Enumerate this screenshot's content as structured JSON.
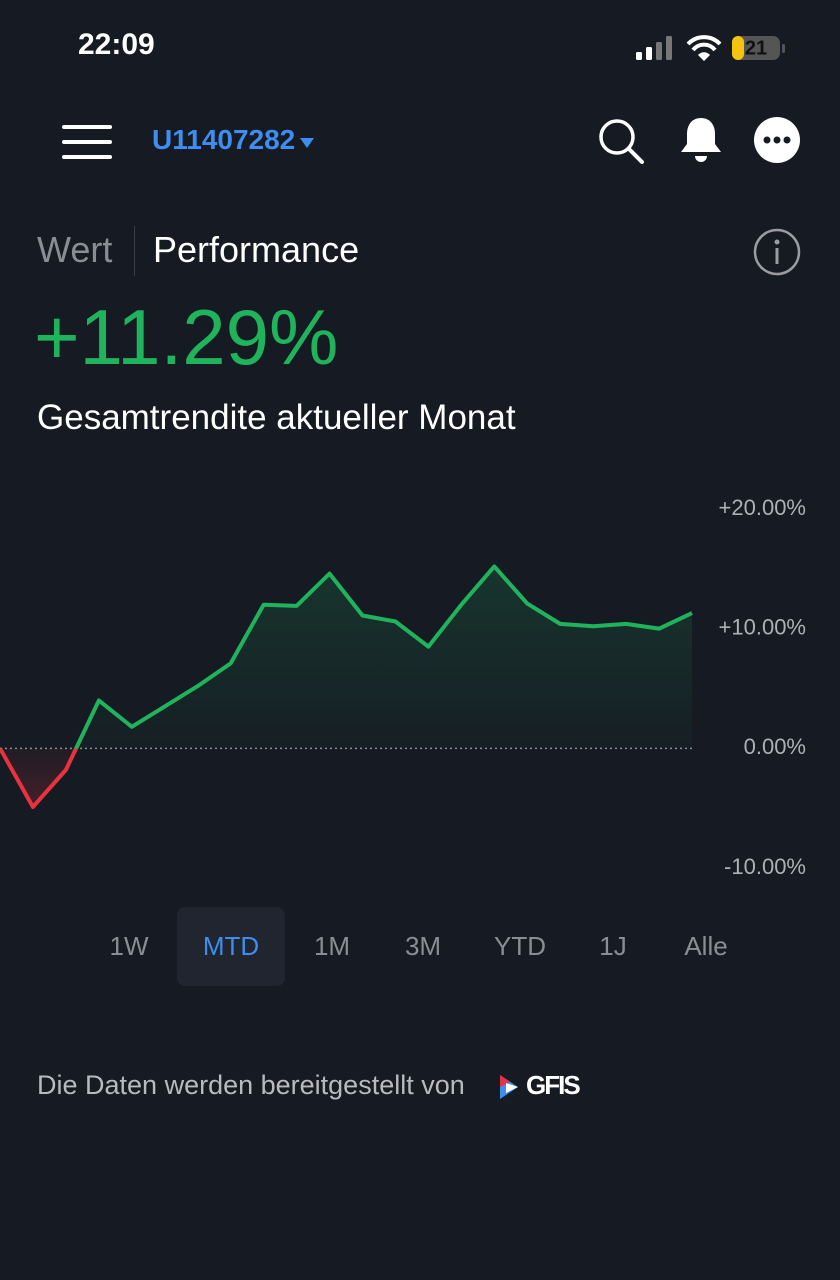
{
  "status_bar": {
    "time": "22:09",
    "battery": "21"
  },
  "header": {
    "account": "U11407282"
  },
  "view_tabs": {
    "items": [
      "Wert",
      "Performance"
    ],
    "active_index": 1
  },
  "chart_data": {
    "type": "line",
    "title": "+11.29%",
    "subtitle": "Gesamtrendite aktueller Monat",
    "categories": [
      null,
      null,
      null,
      null,
      null,
      null,
      null,
      null,
      null,
      null,
      null,
      null,
      null,
      null,
      null,
      null,
      null,
      null,
      null,
      null,
      null,
      null
    ],
    "values": [
      0,
      -4.9,
      -1.8,
      4.0,
      1.8,
      3.5,
      5.2,
      7.1,
      12.0,
      11.9,
      14.6,
      11.1,
      10.6,
      8.5,
      12.0,
      15.2,
      12.1,
      10.4,
      10.2,
      10.4,
      10.0,
      11.3
    ],
    "color": "#1fb45c",
    "negative_color": "#e8333f",
    "ylim": [
      -10,
      20
    ],
    "yticks": [
      {
        "value": 20,
        "label": "+20.00%"
      },
      {
        "value": 10,
        "label": "+10.00%"
      },
      {
        "value": 0,
        "label": "0.00%"
      },
      {
        "value": -10,
        "label": "-10.00%"
      }
    ],
    "zero_line": true
  },
  "ranges": {
    "items": [
      "1W",
      "MTD",
      "1M",
      "3M",
      "YTD",
      "1J",
      "Alle"
    ],
    "selected_index": 1
  },
  "footer": {
    "text": "Die Daten werden bereitgestellt von",
    "provider": "GFIS"
  }
}
